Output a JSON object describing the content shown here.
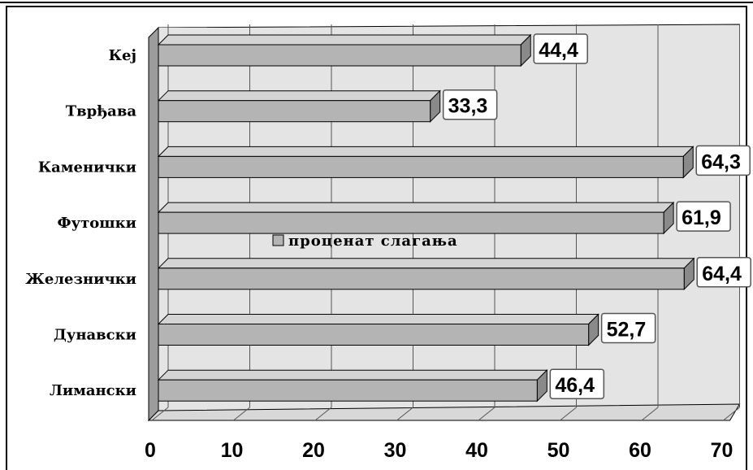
{
  "chart_data": {
    "type": "bar",
    "orientation": "horizontal",
    "style": "3d",
    "categories": [
      "Кеј",
      "Тврђава",
      "Каменички",
      "Футошки",
      "Железнички",
      "Дунавски",
      "Лимански"
    ],
    "series": [
      {
        "name": "проценат слагања",
        "values": [
          44.4,
          33.3,
          64.3,
          61.9,
          64.4,
          52.7,
          46.4
        ]
      }
    ],
    "data_labels": [
      "44,4",
      "33,3",
      "64,3",
      "61,9",
      "64,4",
      "52,7",
      "46,4"
    ],
    "x_ticks": [
      "0",
      "10",
      "20",
      "30",
      "40",
      "50",
      "60",
      "70"
    ],
    "xlim": [
      0,
      70
    ],
    "grid": true,
    "legend": {
      "placement": "inside-center",
      "label": "проценат слагања"
    },
    "colors": {
      "bar_front": "#b4b4b4",
      "bar_top": "#d4d4d4",
      "bar_side": "#8a8a8a",
      "plot_back": "#e4e4e4",
      "wall": "#9c9c9c",
      "floor": "#d8d8d8"
    }
  }
}
